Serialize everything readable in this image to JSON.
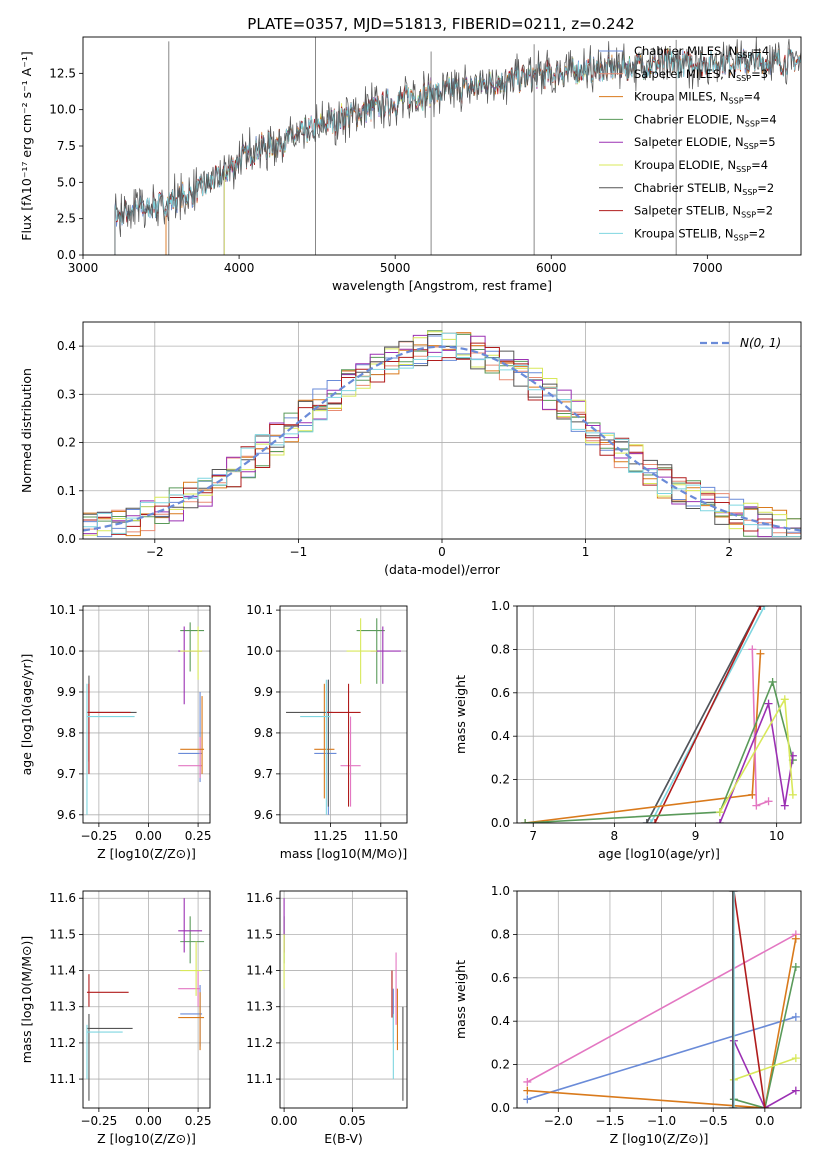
{
  "page_title": "PLATE=0357, MJD=51813, FIBERID=0211, z=0.242",
  "colors": {
    "Chabrier MILES": "#6a8bd8",
    "Salpeter MILES": "#e88b73",
    "Kroupa MILES": "#d97a1c",
    "Chabrier ELODIE": "#5a9a5a",
    "Salpeter ELODIE": "#9b30b3",
    "Kroupa ELODIE": "#d8e85a",
    "Chabrier STELIB": "#555555",
    "Salpeter STELIB": "#b01c1c",
    "Kroupa STELIB": "#7fd6e0",
    "pink": "#e377c2",
    "gauss": "#6a8bd8"
  },
  "chart_data": [
    {
      "id": "spectrum",
      "type": "line",
      "title": "PLATE=0357, MJD=51813, FIBERID=0211, z=0.242",
      "xlabel": "wavelength [Angstrom, rest frame]",
      "ylabel": "Flux [fλ10⁻¹⁷ erg cm⁻² s⁻¹ A⁻¹]",
      "xlim": [
        3000,
        7600
      ],
      "ylim": [
        0,
        15
      ],
      "xticks": [
        "3000",
        "4000",
        "5000",
        "6000",
        "7000"
      ],
      "yticks": [
        "0.0",
        "2.5",
        "5.0",
        "7.5",
        "10.0",
        "12.5"
      ],
      "legend_position": "upper right",
      "series": [
        {
          "name": "Chabrier MILES, N_SSP=4",
          "start": 3200,
          "end": 7600
        },
        {
          "name": "Salpeter MILES, N_SSP=3",
          "start": 3530,
          "end": 7600
        },
        {
          "name": "Kroupa MILES, N_SSP=4",
          "start": 3530,
          "end": 7600
        },
        {
          "name": "Chabrier ELODIE, N_SSP=4",
          "start": 3900,
          "end": 6800
        },
        {
          "name": "Salpeter ELODIE, N_SSP=5",
          "start": 3900,
          "end": 6800
        },
        {
          "name": "Kroupa ELODIE, N_SSP=4",
          "start": 3900,
          "end": 6800
        },
        {
          "name": "Chabrier STELIB, N_SSP=2",
          "start": 3200,
          "end": 7600
        },
        {
          "name": "Salpeter STELIB, N_SSP=2",
          "start": 3200,
          "end": 7600
        },
        {
          "name": "Kroupa STELIB, N_SSP=2",
          "start": 3200,
          "end": 7600
        }
      ],
      "continuum": [
        [
          3200,
          2.8
        ],
        [
          3500,
          3.5
        ],
        [
          3700,
          4.2
        ],
        [
          3900,
          5.5
        ],
        [
          4000,
          6.6
        ],
        [
          4100,
          7.2
        ],
        [
          4300,
          7.9
        ],
        [
          4500,
          8.8
        ],
        [
          4700,
          9.6
        ],
        [
          4900,
          10.2
        ],
        [
          5100,
          10.9
        ],
        [
          5300,
          11.2
        ],
        [
          5500,
          11.6
        ],
        [
          5700,
          12.0
        ],
        [
          5900,
          12.3
        ],
        [
          6100,
          12.6
        ],
        [
          6300,
          12.8
        ],
        [
          6500,
          13.0
        ],
        [
          6800,
          13.2
        ],
        [
          7100,
          13.3
        ],
        [
          7400,
          13.3
        ],
        [
          7600,
          13.3
        ]
      ]
    },
    {
      "id": "residuals",
      "type": "step",
      "xlabel": "(data-model)/error",
      "ylabel": "Normed distribution",
      "xlim": [
        -2.5,
        2.5
      ],
      "ylim": [
        0,
        0.45
      ],
      "xticks": [
        "−2",
        "−1",
        "0",
        "1",
        "2"
      ],
      "yticks": [
        "0.0",
        "0.1",
        "0.2",
        "0.3",
        "0.4"
      ],
      "legend": "N(0, 1)",
      "bin_width": 0.1
    },
    {
      "id": "age_vs_Z",
      "type": "errorbar",
      "xlabel": "Z [log10(Z/Z⊙)]",
      "ylabel": "age  [log10(age/yr)]",
      "xlim": [
        -0.33,
        0.31
      ],
      "ylim": [
        9.58,
        10.11
      ],
      "xticks": [
        "−0.25",
        "0.00",
        "0.25"
      ],
      "yticks": [
        "9.6",
        "9.7",
        "9.8",
        "9.9",
        "10.0",
        "10.1"
      ],
      "points": [
        {
          "c": "Chabrier MILES",
          "x": 0.26,
          "y": 9.75,
          "xl": 0.15,
          "xh": 0.27,
          "yl": 9.68,
          "yh": 9.9
        },
        {
          "c": "pink",
          "x": 0.26,
          "y": 9.72,
          "xl": 0.15,
          "xh": 0.27,
          "yl": 9.69,
          "yh": 9.79
        },
        {
          "c": "Kroupa MILES",
          "x": 0.27,
          "y": 9.76,
          "xl": 0.16,
          "xh": 0.28,
          "yl": 9.7,
          "yh": 9.89
        },
        {
          "c": "Chabrier ELODIE",
          "x": 0.21,
          "y": 10.05,
          "xl": 0.16,
          "xh": 0.28,
          "yl": 9.95,
          "yh": 10.07
        },
        {
          "c": "Salpeter ELODIE",
          "x": 0.18,
          "y": 10.0,
          "xl": 0.15,
          "xh": 0.27,
          "yl": 9.87,
          "yh": 10.06
        },
        {
          "c": "Kroupa ELODIE",
          "x": 0.25,
          "y": 10.0,
          "xl": 0.16,
          "xh": 0.27,
          "yl": 9.93,
          "yh": 10.06
        },
        {
          "c": "Chabrier STELIB",
          "x": -0.3,
          "y": 9.85,
          "xl": -0.31,
          "xh": -0.06,
          "yl": 9.73,
          "yh": 9.94
        },
        {
          "c": "Salpeter STELIB",
          "x": -0.3,
          "y": 9.85,
          "xl": -0.31,
          "xh": -0.09,
          "yl": 9.7,
          "yh": 9.92
        },
        {
          "c": "Kroupa STELIB",
          "x": -0.31,
          "y": 9.84,
          "xl": -0.31,
          "xh": -0.07,
          "yl": 9.6,
          "yh": 9.92
        }
      ]
    },
    {
      "id": "age_vs_mass",
      "type": "errorbar",
      "xlabel": "mass [log10(M/M⊙)]",
      "ylabel": "",
      "xlim": [
        11.0,
        11.63
      ],
      "ylim": [
        9.58,
        10.11
      ],
      "xticks": [
        "11.25",
        "11.50"
      ],
      "yticks": [
        "9.6",
        "9.7",
        "9.8",
        "9.9",
        "10.0",
        "10.1"
      ],
      "points": [
        {
          "c": "Chabrier MILES",
          "x": 11.24,
          "y": 9.75,
          "xl": 11.17,
          "xh": 11.28,
          "yl": 9.6,
          "yh": 9.93
        },
        {
          "c": "pink",
          "x": 11.35,
          "y": 9.72,
          "xl": 11.3,
          "xh": 11.4,
          "yl": 9.62,
          "yh": 9.84
        },
        {
          "c": "Kroupa MILES",
          "x": 11.22,
          "y": 9.76,
          "xl": 11.17,
          "xh": 11.27,
          "yl": 9.64,
          "yh": 9.92
        },
        {
          "c": "Chabrier ELODIE",
          "x": 11.48,
          "y": 10.05,
          "xl": 11.38,
          "xh": 11.52,
          "yl": 9.92,
          "yh": 10.08
        },
        {
          "c": "Salpeter ELODIE",
          "x": 11.51,
          "y": 10.0,
          "xl": 11.45,
          "xh": 11.6,
          "yl": 9.92,
          "yh": 10.06
        },
        {
          "c": "Kroupa ELODIE",
          "x": 11.4,
          "y": 10.0,
          "xl": 11.33,
          "xh": 11.48,
          "yl": 9.92,
          "yh": 10.08
        },
        {
          "c": "Chabrier STELIB",
          "x": 11.24,
          "y": 9.85,
          "xl": 11.03,
          "xh": 11.26,
          "yl": 9.62,
          "yh": 9.93
        },
        {
          "c": "Salpeter STELIB",
          "x": 11.34,
          "y": 9.85,
          "xl": 11.23,
          "xh": 11.4,
          "yl": 9.62,
          "yh": 9.92
        },
        {
          "c": "Kroupa STELIB",
          "x": 11.23,
          "y": 9.84,
          "xl": 11.1,
          "xh": 11.25,
          "yl": 9.6,
          "yh": 9.93
        }
      ]
    },
    {
      "id": "massweight_vs_age",
      "type": "line",
      "xlabel": "age  [log10(age/yr)]",
      "ylabel": "mass weight",
      "xlim": [
        6.8,
        10.3
      ],
      "ylim": [
        0,
        1
      ],
      "xticks": [
        "7",
        "8",
        "9",
        "10"
      ],
      "yticks": [
        "0.0",
        "0.2",
        "0.4",
        "0.6",
        "0.8",
        "1.0"
      ],
      "series": [
        {
          "c": "Kroupa STELIB",
          "x": [
            8.45,
            9.85
          ],
          "y": [
            0.0,
            1.0
          ]
        },
        {
          "c": "Chabrier MILES",
          "x": [
            8.4,
            9.8
          ],
          "y": [
            0.0,
            1.0
          ]
        },
        {
          "c": "Chabrier STELIB",
          "x": [
            8.4,
            9.8
          ],
          "y": [
            0.0,
            1.0
          ]
        },
        {
          "c": "Salpeter STELIB",
          "x": [
            8.5,
            9.8
          ],
          "y": [
            0.0,
            1.0
          ]
        },
        {
          "c": "Kroupa MILES",
          "x": [
            6.9,
            9.7,
            9.8
          ],
          "y": [
            0.0,
            0.13,
            0.78
          ]
        },
        {
          "c": "pink",
          "x": [
            9.7,
            9.75,
            9.9
          ],
          "y": [
            0.8,
            0.08,
            0.1
          ]
        },
        {
          "c": "Chabrier ELODIE",
          "x": [
            6.9,
            9.3,
            9.95,
            10.2
          ],
          "y": [
            0.0,
            0.05,
            0.65,
            0.29
          ]
        },
        {
          "c": "Salpeter ELODIE",
          "x": [
            9.3,
            9.9,
            10.1,
            10.2
          ],
          "y": [
            0.0,
            0.55,
            0.08,
            0.31
          ]
        },
        {
          "c": "Kroupa ELODIE",
          "x": [
            9.3,
            10.1,
            10.2
          ],
          "y": [
            0.05,
            0.57,
            0.13
          ]
        }
      ]
    },
    {
      "id": "mass_vs_Z",
      "type": "errorbar",
      "xlabel": "Z [log10(Z/Z⊙)]",
      "ylabel": "mass [log10(M/M⊙)]",
      "xlim": [
        -0.33,
        0.31
      ],
      "ylim": [
        11.02,
        11.62
      ],
      "xticks": [
        "−0.25",
        "0.00",
        "0.25"
      ],
      "yticks": [
        "11.1",
        "11.2",
        "11.3",
        "11.4",
        "11.5",
        "11.6"
      ],
      "points": [
        {
          "c": "Chabrier MILES",
          "x": 0.26,
          "y": 11.28,
          "xl": 0.16,
          "xh": 0.27,
          "yl": 11.19,
          "yh": 11.36
        },
        {
          "c": "pink",
          "x": 0.25,
          "y": 11.35,
          "xl": 0.15,
          "xh": 0.26,
          "yl": 11.3,
          "yh": 11.4
        },
        {
          "c": "Kroupa MILES",
          "x": 0.26,
          "y": 11.27,
          "xl": 0.15,
          "xh": 0.28,
          "yl": 11.18,
          "yh": 11.34
        },
        {
          "c": "Chabrier ELODIE",
          "x": 0.21,
          "y": 11.48,
          "xl": 0.16,
          "xh": 0.28,
          "yl": 11.42,
          "yh": 11.55
        },
        {
          "c": "Salpeter ELODIE",
          "x": 0.18,
          "y": 11.51,
          "xl": 0.15,
          "xh": 0.27,
          "yl": 11.45,
          "yh": 11.6
        },
        {
          "c": "Kroupa ELODIE",
          "x": 0.24,
          "y": 11.4,
          "xl": 0.16,
          "xh": 0.27,
          "yl": 11.33,
          "yh": 11.48
        },
        {
          "c": "Chabrier STELIB",
          "x": -0.3,
          "y": 11.24,
          "xl": -0.31,
          "xh": -0.08,
          "yl": 11.04,
          "yh": 11.28
        },
        {
          "c": "Salpeter STELIB",
          "x": -0.3,
          "y": 11.34,
          "xl": -0.31,
          "xh": -0.1,
          "yl": 11.3,
          "yh": 11.39
        },
        {
          "c": "Kroupa STELIB",
          "x": -0.31,
          "y": 11.23,
          "xl": -0.31,
          "xh": -0.13,
          "yl": 11.1,
          "yh": 11.25
        }
      ]
    },
    {
      "id": "mass_vs_EBV",
      "type": "errorbar",
      "xlabel": "E(B-V)",
      "ylabel": "",
      "xlim": [
        -0.003,
        0.09
      ],
      "ylim": [
        11.02,
        11.62
      ],
      "xticks": [
        "0.00",
        "0.05"
      ],
      "yticks": [
        "11.1",
        "11.2",
        "11.3",
        "11.4",
        "11.5",
        "11.6"
      ],
      "points": [
        {
          "c": "Chabrier MILES",
          "x": 0.08,
          "y": 11.28,
          "yl": 11.2,
          "yh": 11.35
        },
        {
          "c": "pink",
          "x": 0.082,
          "y": 11.35,
          "yl": 11.25,
          "yh": 11.45
        },
        {
          "c": "Kroupa MILES",
          "x": 0.083,
          "y": 11.27,
          "yl": 11.18,
          "yh": 11.35
        },
        {
          "c": "Chabrier ELODIE",
          "x": 0.0,
          "y": 11.48,
          "yl": 11.42,
          "yh": 11.55
        },
        {
          "c": "Salpeter ELODIE",
          "x": 0.0,
          "y": 11.51,
          "yl": 11.45,
          "yh": 11.6
        },
        {
          "c": "Kroupa ELODIE",
          "x": 0.0,
          "y": 11.4,
          "yl": 11.35,
          "yh": 11.5
        },
        {
          "c": "Chabrier STELIB",
          "x": 0.087,
          "y": 11.24,
          "yl": 11.04,
          "yh": 11.3
        },
        {
          "c": "Salpeter STELIB",
          "x": 0.079,
          "y": 11.34,
          "yl": 11.27,
          "yh": 11.4
        },
        {
          "c": "Kroupa STELIB",
          "x": 0.08,
          "y": 11.23,
          "yl": 11.1,
          "yh": 11.28
        }
      ]
    },
    {
      "id": "massweight_vs_Z",
      "type": "line",
      "xlabel": "Z [log10(Z/Z⊙)]",
      "ylabel": "mass weight",
      "xlim": [
        -2.4,
        0.35
      ],
      "ylim": [
        0,
        1
      ],
      "xticks": [
        "−2.0",
        "−1.5",
        "−1.0",
        "−0.5",
        "0.0"
      ],
      "yticks": [
        "0.0",
        "0.2",
        "0.4",
        "0.6",
        "0.8",
        "1.0"
      ],
      "series": [
        {
          "c": "Chabrier MILES",
          "x": [
            -2.3,
            0.3
          ],
          "y": [
            0.04,
            0.42
          ]
        },
        {
          "c": "pink",
          "x": [
            -2.3,
            0.3
          ],
          "y": [
            0.12,
            0.8
          ]
        },
        {
          "c": "Kroupa MILES",
          "x": [
            -2.3,
            0.0,
            0.3
          ],
          "y": [
            0.08,
            0.0,
            0.78
          ]
        },
        {
          "c": "Chabrier ELODIE",
          "x": [
            -0.3,
            0.0,
            0.3
          ],
          "y": [
            0.04,
            0.0,
            0.65
          ]
        },
        {
          "c": "Salpeter ELODIE",
          "x": [
            -0.3,
            0.0,
            0.3
          ],
          "y": [
            0.31,
            0.0,
            0.08
          ]
        },
        {
          "c": "Kroupa ELODIE",
          "x": [
            -0.3,
            0.3
          ],
          "y": [
            0.13,
            0.23
          ]
        },
        {
          "c": "Salpeter STELIB",
          "x": [
            -0.3,
            0.0
          ],
          "y": [
            1.0,
            0.0
          ]
        },
        {
          "c": "Kroupa STELIB",
          "x": [
            -0.3,
            -0.3
          ],
          "y": [
            0.0,
            1.0
          ]
        },
        {
          "c": "Chabrier STELIB",
          "x": [
            -0.31,
            -0.31
          ],
          "y": [
            0.0,
            1.0
          ]
        }
      ]
    }
  ]
}
